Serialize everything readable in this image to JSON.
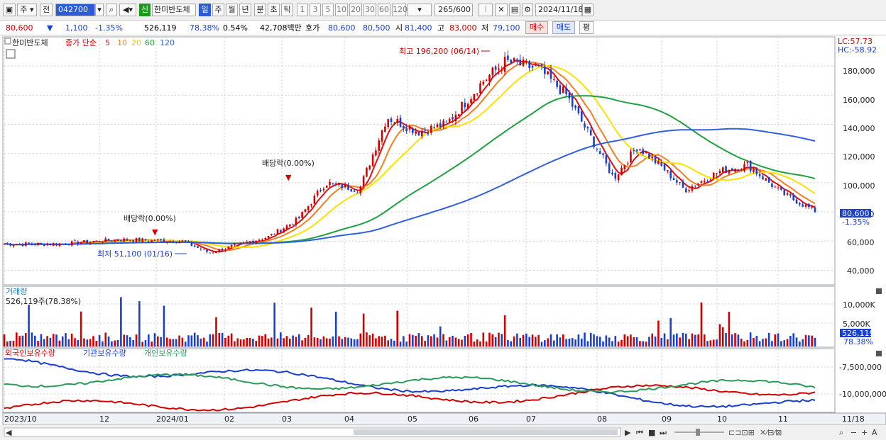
{
  "toolbar": {
    "market": "주",
    "period_prefix": "전",
    "code": "042700",
    "credit_badge": "신",
    "stock_name": "한미반도체",
    "periods": [
      "일",
      "주",
      "월",
      "년",
      "분",
      "초",
      "틱"
    ],
    "selected_period": "일",
    "intervals": [
      "1",
      "3",
      "5",
      "10",
      "20",
      "30",
      "60",
      "120"
    ],
    "count": "265",
    "count_total": "/600",
    "date": "2024/11/18"
  },
  "quote": {
    "price": "80,600",
    "arrow": "▼",
    "change": "1,100",
    "change_pct": "-1.35%",
    "volume": "526,119",
    "volume_ratio": "78.38%",
    "turnover": "0.54%",
    "amount": "42,708백만",
    "bid_label": "호가",
    "bid1": "80,600",
    "bid2": "80,500",
    "open_label": "시",
    "open": "81,400",
    "high_label": "고",
    "high": "83,000",
    "low_label": "저",
    "low": "79,100",
    "buy_label": "매수",
    "sell_label": "매도",
    "eval_label": "평"
  },
  "price_panel": {
    "title": "한미반도체",
    "legend_prefix": "종가 단순",
    "ma_labels": [
      "5",
      "10",
      "20",
      "60",
      "120"
    ],
    "lc": "LC:57.73",
    "hc": "HC:-58.92",
    "y_ticks": [
      "180,000",
      "160,000",
      "140,000",
      "120,000",
      "100,000",
      "80,000",
      "60,000",
      "40,000"
    ],
    "last_price": "80,600",
    "last_change": "-1.35%",
    "annotations": {
      "high": "최고 196,200 (06/14)",
      "low": "최저 51,100 (01/16)",
      "dividend1": "배당락(0.00%)",
      "dividend2": "배당락(0.00%)"
    }
  },
  "volume_panel": {
    "title": "거래량",
    "value": "526,119주(78.38%)",
    "y_ticks": [
      "10,000K",
      "5,000K"
    ],
    "last_value": "526,119",
    "last_ratio": "78.38%"
  },
  "holdings_panel": {
    "series": [
      "외국인보유수량",
      "기관보유수량",
      "개인보유수량"
    ],
    "y_ticks": [
      "-7,500,000",
      "-10,000,000"
    ]
  },
  "x_axis": {
    "labels": [
      "2023/10",
      "12",
      "2024/01",
      "02",
      "03",
      "04",
      "05",
      "06",
      "07",
      "08",
      "09",
      "10",
      "11"
    ],
    "end_label": "11/18"
  },
  "colors": {
    "up": "#d40000",
    "down": "#1a3fd0",
    "ma5": "#e01010",
    "ma10": "#f08020",
    "ma20": "#ffe000",
    "ma60": "#20a040",
    "ma120": "#3060e0"
  },
  "chart_data": {
    "type": "line",
    "price": {
      "x": [
        "2023-10-04",
        "2023-11-01",
        "2023-12-01",
        "2024-01-02",
        "2024-01-16",
        "2024-02-01",
        "2024-02-15",
        "2024-03-01",
        "2024-03-15",
        "2024-04-01",
        "2024-04-15",
        "2024-05-01",
        "2024-05-15",
        "2024-06-03",
        "2024-06-14",
        "2024-07-01",
        "2024-07-15",
        "2024-08-01",
        "2024-08-08",
        "2024-08-20",
        "2024-09-02",
        "2024-09-13",
        "2024-10-01",
        "2024-10-15",
        "2024-11-01",
        "2024-11-18"
      ],
      "close": [
        58000,
        58000,
        61000,
        60000,
        52000,
        58000,
        63000,
        75000,
        100000,
        95000,
        145000,
        135000,
        140000,
        170000,
        183000,
        178000,
        160000,
        120000,
        103000,
        125000,
        110000,
        95000,
        108000,
        112000,
        93000,
        80600
      ],
      "ylim": [
        30000,
        200000
      ]
    },
    "volume": {
      "unit": "K",
      "ylim": [
        0,
        15000
      ]
    },
    "holdings": {
      "series_names": [
        "외국인보유수량",
        "기관보유수량",
        "개인보유수량"
      ]
    }
  }
}
